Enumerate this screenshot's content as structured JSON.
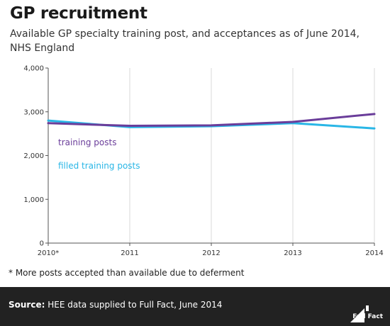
{
  "header": {
    "title": "GP recruitment",
    "subtitle": "Available GP specialty training post, and acceptances as of June 2014, NHS England"
  },
  "colors": {
    "training_posts": "#6a3d9a",
    "filled_training_posts": "#29b6e6",
    "footer_bg": "#222222"
  },
  "chart_data": {
    "type": "line",
    "x": [
      "2010*",
      "2011",
      "2012",
      "2013",
      "2014"
    ],
    "series": [
      {
        "name": "training posts",
        "values": [
          2740,
          2680,
          2690,
          2770,
          2950
        ]
      },
      {
        "name": "filled training posts",
        "values": [
          2800,
          2650,
          2670,
          2740,
          2620
        ]
      }
    ],
    "yticks": [
      "0",
      "1,000",
      "2,000",
      "3,000",
      "4,000"
    ],
    "ylim": [
      0,
      4000
    ],
    "grid": "vertical"
  },
  "footnote": "* More posts accepted than available due to deferment",
  "footer": {
    "source_label": "Source:",
    "source_text": " HEE data supplied to Full Fact, June 2014",
    "logo_text": "Full Fact"
  }
}
